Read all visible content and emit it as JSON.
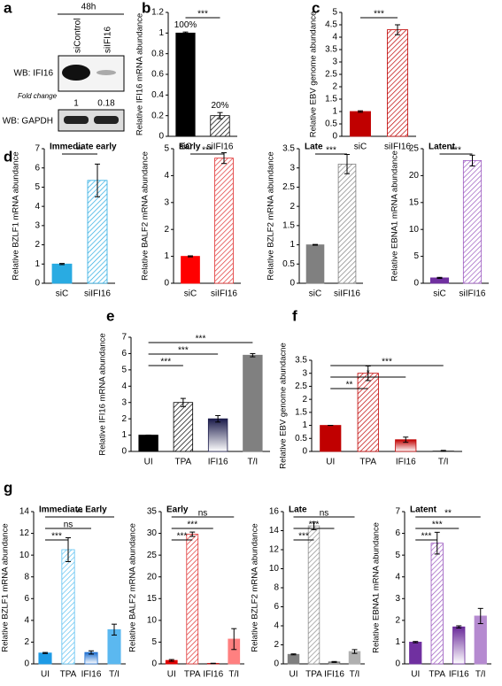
{
  "blot": {
    "panel": "a",
    "time": "48h",
    "lanes": [
      "siControl",
      "siIFI16"
    ],
    "top_label": "WB: IFI16",
    "fold_label": "Fold change",
    "fold_values": [
      1,
      0.18
    ],
    "bottom_label": "WB: GAPDH"
  },
  "chart_data": [
    {
      "type": "bar",
      "panel": "b",
      "ylabel": "Relative IFI16 mRNA abundance",
      "categories": [
        "siC",
        "siIFI16"
      ],
      "values": [
        1,
        0.2
      ],
      "errors": [
        0.01,
        0.03
      ],
      "value_labels": [
        "100%",
        "20%"
      ],
      "colors": [
        "#000000",
        "#000000"
      ],
      "fills": [
        "solid",
        "hatch"
      ],
      "ylim": [
        0,
        1.2
      ],
      "yticks": [
        0,
        0.2,
        0.4,
        0.6,
        0.8,
        1,
        1.2
      ],
      "significance": [
        "***"
      ]
    },
    {
      "type": "bar",
      "panel": "c",
      "ylabel": "Relative EBV genome abundance",
      "categories": [
        "siC",
        "siIFI16"
      ],
      "values": [
        1,
        4.3
      ],
      "errors": [
        0.03,
        0.2
      ],
      "colors": [
        "#c00000",
        "#c00000"
      ],
      "fills": [
        "solid",
        "hatch"
      ],
      "ylim": [
        0,
        5
      ],
      "yticks": [
        0,
        0.5,
        1,
        1.5,
        2,
        2.5,
        3,
        3.5,
        4,
        4.5,
        5
      ],
      "significance": [
        "***"
      ]
    },
    {
      "type": "bar",
      "panel": "d",
      "title": "Immediate early",
      "ylabel": "Relative BZLF1 mRNA abundance",
      "categories": [
        "siC",
        "siIFI16"
      ],
      "values": [
        1,
        5.35
      ],
      "errors": [
        0.03,
        0.85
      ],
      "colors": [
        "#29abe2",
        "#29abe2"
      ],
      "fills": [
        "solid",
        "hatch"
      ],
      "ylim": [
        0,
        7
      ],
      "yticks": [
        0,
        1,
        2,
        3,
        4,
        5,
        6,
        7
      ],
      "significance": [
        "**"
      ]
    },
    {
      "type": "bar",
      "title": "Early",
      "ylabel": "Relative BALF2 mRNA abundance",
      "categories": [
        "siC",
        "siIFI16"
      ],
      "values": [
        1,
        4.65
      ],
      "errors": [
        0.02,
        0.2
      ],
      "colors": [
        "#ff0000",
        "#e03030"
      ],
      "fills": [
        "solid",
        "hatch"
      ],
      "ylim": [
        0,
        5
      ],
      "yticks": [
        0,
        1,
        2,
        3,
        4,
        5
      ],
      "significance": [
        "***"
      ]
    },
    {
      "type": "bar",
      "title": "Late",
      "ylabel": "Relative BZLF2 mRNA abundance",
      "categories": [
        "siC",
        "siIFI16"
      ],
      "values": [
        1,
        3.1
      ],
      "errors": [
        0.01,
        0.25
      ],
      "colors": [
        "#808080",
        "#808080"
      ],
      "fills": [
        "solid",
        "hatch"
      ],
      "ylim": [
        0,
        3.5
      ],
      "yticks": [
        0,
        0.5,
        1,
        1.5,
        2,
        2.5,
        3,
        3.5
      ],
      "significance": [
        "***"
      ]
    },
    {
      "type": "bar",
      "title": "Latent",
      "ylabel": "Relative EBNA1 mRNA abundance",
      "categories": [
        "siC",
        "siIFI16"
      ],
      "values": [
        1,
        22.8
      ],
      "errors": [
        0.1,
        1
      ],
      "colors": [
        "#7030a0",
        "#9b59c0"
      ],
      "fills": [
        "solid",
        "hatch"
      ],
      "ylim": [
        0,
        25
      ],
      "yticks": [
        0,
        5,
        10,
        15,
        20,
        25
      ],
      "significance": [
        "***"
      ]
    },
    {
      "type": "bar",
      "panel": "e",
      "ylabel": "Relative IFI16 mRNA abundance",
      "categories": [
        "UI",
        "TPA",
        "IFI16",
        "T/I"
      ],
      "values": [
        1,
        3,
        2,
        5.9
      ],
      "errors": [
        0,
        0.25,
        0.2,
        0.1
      ],
      "colors": [
        "#000000",
        "#000000",
        "#1a1a4a",
        "#808080"
      ],
      "fills": [
        "solid",
        "hatch",
        "gradient",
        "solid"
      ],
      "ylim": [
        0,
        7
      ],
      "yticks": [
        0,
        1,
        2,
        3,
        4,
        5,
        6,
        7
      ],
      "significance": [
        "***",
        "***",
        "***"
      ]
    },
    {
      "type": "bar",
      "panel": "f",
      "ylabel": "Relative EBV genome abundacne",
      "categories": [
        "UI",
        "TPA",
        "IFI16",
        "T/I"
      ],
      "values": [
        1,
        3,
        0.45,
        0.02
      ],
      "errors": [
        0,
        0.28,
        0.1,
        0.02
      ],
      "colors": [
        "#c00000",
        "#c00000",
        "#c00000",
        "#404040"
      ],
      "fills": [
        "solid",
        "hatch",
        "gradient",
        "gradient"
      ],
      "ylim": [
        0,
        3.5
      ],
      "yticks": [
        0,
        0.5,
        1,
        1.5,
        2,
        2.5,
        3,
        3.5
      ],
      "significance": [
        "**",
        "*",
        "***"
      ]
    },
    {
      "type": "bar",
      "panel": "g",
      "title": "Immediate Early",
      "ylabel": "Relative BZLF1 mRNA abundance",
      "categories": [
        "UI",
        "TPA",
        "IFI16",
        "T/I"
      ],
      "values": [
        1,
        10.5,
        1.05,
        3.15
      ],
      "errors": [
        0.05,
        1.1,
        0.15,
        0.5
      ],
      "colors": [
        "#1e9be6",
        "#5bc0f0",
        "#1e6fd0",
        "#5bb8f0"
      ],
      "fills": [
        "solid",
        "hatch",
        "gradient",
        "solid"
      ],
      "ylim": [
        0,
        14
      ],
      "yticks": [
        0,
        2,
        4,
        6,
        8,
        10,
        12,
        14
      ],
      "significance": [
        "***",
        "ns",
        "**"
      ]
    },
    {
      "type": "bar",
      "title": "Early",
      "ylabel": "Relative BALF2 mRNA abundance",
      "categories": [
        "UI",
        "TPA",
        "IFI16",
        "T/I"
      ],
      "values": [
        0.8,
        29.8,
        0.1,
        5.7
      ],
      "errors": [
        0.2,
        0.5,
        0.05,
        2.4
      ],
      "colors": [
        "#e00000",
        "#e03030",
        "#c00000",
        "#ff8080"
      ],
      "fills": [
        "solid",
        "hatch",
        "gradient",
        "solid"
      ],
      "ylim": [
        0,
        35
      ],
      "yticks": [
        0,
        5,
        10,
        15,
        20,
        25,
        30,
        35
      ],
      "significance": [
        "***",
        "***",
        "ns"
      ]
    },
    {
      "type": "bar",
      "title": "Late",
      "ylabel": "Relative BZLF2 mRNA abundance",
      "categories": [
        "UI",
        "TPA",
        "IFI16",
        "T/I"
      ],
      "values": [
        1,
        14.5,
        0.2,
        1.3
      ],
      "errors": [
        0.05,
        0.4,
        0.05,
        0.2
      ],
      "colors": [
        "#808080",
        "#909090",
        "#606060",
        "#b0b0b0"
      ],
      "fills": [
        "solid",
        "hatch",
        "gradient",
        "solid"
      ],
      "ylim": [
        0,
        16
      ],
      "yticks": [
        0,
        2,
        4,
        6,
        8,
        10,
        12,
        14,
        16
      ],
      "significance": [
        "***",
        "***",
        "ns"
      ]
    },
    {
      "type": "bar",
      "title": "Latent",
      "ylabel": "Relative EBNA1 mRNA abundance",
      "categories": [
        "UI",
        "TPA",
        "IFI16",
        "T/I"
      ],
      "values": [
        1,
        5.55,
        1.7,
        2.2
      ],
      "errors": [
        0.03,
        0.5,
        0.05,
        0.35
      ],
      "colors": [
        "#7030a0",
        "#9b59c0",
        "#6a2a9a",
        "#b58ad0"
      ],
      "fills": [
        "solid",
        "hatch",
        "gradient",
        "solid"
      ],
      "ylim": [
        0,
        7
      ],
      "yticks": [
        0,
        1,
        2,
        3,
        4,
        5,
        6,
        7
      ],
      "significance": [
        "***",
        "***",
        "**"
      ]
    }
  ]
}
